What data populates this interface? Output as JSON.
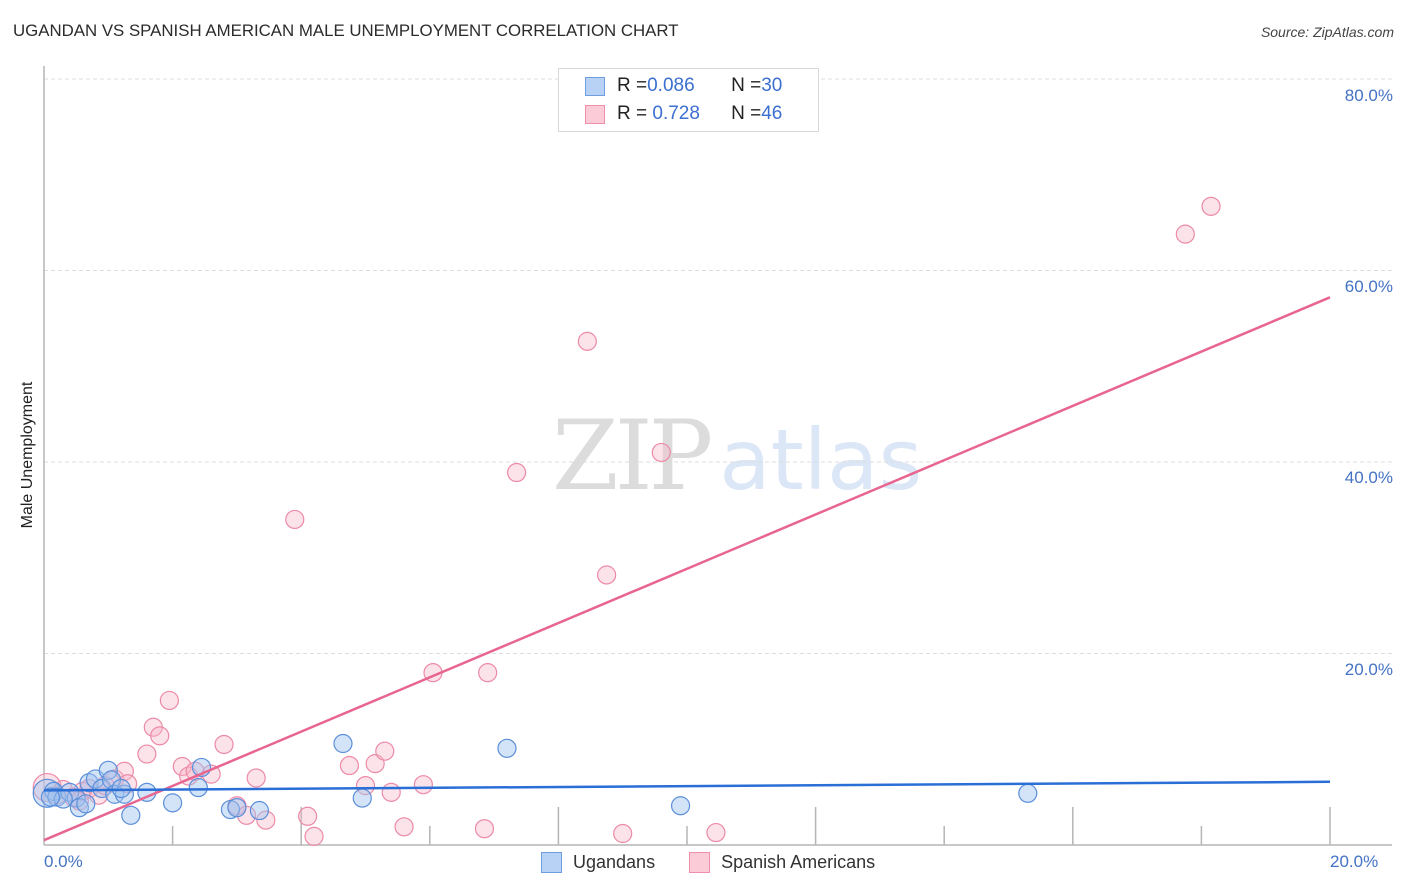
{
  "header": {
    "title": "UGANDAN VS SPANISH AMERICAN MALE UNEMPLOYMENT CORRELATION CHART",
    "source": "Source: ZipAtlas.com"
  },
  "watermark": {
    "zip": "ZIP",
    "atlas": "atlas"
  },
  "legend": {
    "rows": [
      {
        "r_label": "R = ",
        "r_value": "0.086",
        "n_label": "N = ",
        "n_value": "30",
        "color": "#a9c8f2",
        "border": "#6f9de0"
      },
      {
        "r_label": "R = ",
        "r_value": " 0.728",
        "n_label": "N = ",
        "n_value": "46",
        "color": "#f9c5d3",
        "border": "#ef8fab"
      }
    ]
  },
  "bottom_legend": [
    {
      "label": "Ugandans",
      "color": "#b7d2f5",
      "border": "#6f9de0"
    },
    {
      "label": "Spanish Americans",
      "color": "#fbcbd8",
      "border": "#ef8fab"
    }
  ],
  "colors": {
    "blue_point_fill": "rgba(160,196,240,0.45)",
    "blue_point_stroke": "#5b8fd9",
    "pink_point_fill": "rgba(248,183,201,0.40)",
    "pink_point_stroke": "#ec8aa7",
    "blue_trend": "#2a6fd6",
    "pink_trend": "#e8658f",
    "tick_label": "#4472c4",
    "grid": "#dddddd"
  },
  "chart_data": {
    "type": "scatter",
    "title": "UGANDAN VS SPANISH AMERICAN MALE UNEMPLOYMENT CORRELATION CHART",
    "xlabel": "",
    "ylabel": "Male Unemployment",
    "xlim": [
      0,
      20
    ],
    "ylim": [
      0,
      80
    ],
    "x_tick_labels": [
      "0.0%",
      "20.0%"
    ],
    "y_tick_labels": [
      "20.0%",
      "40.0%",
      "60.0%",
      "80.0%"
    ],
    "y_ticks": [
      20,
      40,
      60,
      80
    ],
    "grid": {
      "horizontal": true,
      "style": "dashed"
    },
    "legend_position": "top-center & bottom",
    "series": [
      {
        "name": "Ugandans",
        "R": 0.086,
        "N": 30,
        "trend": {
          "x": [
            0,
            20
          ],
          "y": [
            5.7,
            6.6
          ]
        },
        "points": [
          {
            "x": 0.05,
            "y": 5.4,
            "r": 14
          },
          {
            "x": 0.15,
            "y": 5.6
          },
          {
            "x": 0.2,
            "y": 5.0
          },
          {
            "x": 0.4,
            "y": 5.5
          },
          {
            "x": 0.5,
            "y": 4.9
          },
          {
            "x": 0.55,
            "y": 3.9
          },
          {
            "x": 0.7,
            "y": 6.5
          },
          {
            "x": 0.8,
            "y": 6.9
          },
          {
            "x": 0.9,
            "y": 5.9
          },
          {
            "x": 1.0,
            "y": 7.8
          },
          {
            "x": 1.05,
            "y": 6.8
          },
          {
            "x": 1.1,
            "y": 5.3
          },
          {
            "x": 1.25,
            "y": 5.3
          },
          {
            "x": 1.35,
            "y": 3.1
          },
          {
            "x": 1.6,
            "y": 5.5
          },
          {
            "x": 2.0,
            "y": 4.4
          },
          {
            "x": 2.4,
            "y": 6.0
          },
          {
            "x": 2.45,
            "y": 8.1
          },
          {
            "x": 2.9,
            "y": 3.7
          },
          {
            "x": 3.0,
            "y": 3.9
          },
          {
            "x": 3.35,
            "y": 3.6
          },
          {
            "x": 4.65,
            "y": 10.6
          },
          {
            "x": 4.95,
            "y": 4.9
          },
          {
            "x": 7.2,
            "y": 10.1
          },
          {
            "x": 9.9,
            "y": 4.1
          },
          {
            "x": 15.3,
            "y": 5.4
          },
          {
            "x": 0.3,
            "y": 4.8
          },
          {
            "x": 0.65,
            "y": 4.3
          },
          {
            "x": 1.2,
            "y": 5.9
          },
          {
            "x": 0.1,
            "y": 5.0
          }
        ]
      },
      {
        "name": "Spanish Americans",
        "R": 0.728,
        "N": 46,
        "trend": {
          "x": [
            0,
            20
          ],
          "y": [
            0.5,
            57.2
          ]
        },
        "points": [
          {
            "x": 0.05,
            "y": 6.0,
            "r": 14
          },
          {
            "x": 0.2,
            "y": 5.2
          },
          {
            "x": 0.3,
            "y": 5.8
          },
          {
            "x": 0.45,
            "y": 5.0
          },
          {
            "x": 0.6,
            "y": 5.6
          },
          {
            "x": 0.7,
            "y": 5.9
          },
          {
            "x": 0.85,
            "y": 5.2
          },
          {
            "x": 0.95,
            "y": 6.2
          },
          {
            "x": 1.1,
            "y": 6.9
          },
          {
            "x": 1.25,
            "y": 7.7
          },
          {
            "x": 1.3,
            "y": 6.4
          },
          {
            "x": 1.6,
            "y": 9.5
          },
          {
            "x": 1.7,
            "y": 12.3
          },
          {
            "x": 1.8,
            "y": 11.4
          },
          {
            "x": 1.95,
            "y": 15.1
          },
          {
            "x": 2.15,
            "y": 8.2
          },
          {
            "x": 2.25,
            "y": 7.2
          },
          {
            "x": 2.35,
            "y": 7.7
          },
          {
            "x": 2.6,
            "y": 7.4
          },
          {
            "x": 2.8,
            "y": 10.5
          },
          {
            "x": 3.0,
            "y": 4.1
          },
          {
            "x": 3.15,
            "y": 3.1
          },
          {
            "x": 3.3,
            "y": 7.0
          },
          {
            "x": 3.45,
            "y": 2.6
          },
          {
            "x": 3.9,
            "y": 34.0
          },
          {
            "x": 4.1,
            "y": 3.0
          },
          {
            "x": 4.2,
            "y": 0.9
          },
          {
            "x": 4.75,
            "y": 8.3
          },
          {
            "x": 5.0,
            "y": 6.2
          },
          {
            "x": 5.15,
            "y": 8.5
          },
          {
            "x": 5.3,
            "y": 9.8
          },
          {
            "x": 5.4,
            "y": 5.5
          },
          {
            "x": 5.6,
            "y": 1.9
          },
          {
            "x": 5.9,
            "y": 6.3
          },
          {
            "x": 6.05,
            "y": 18.0
          },
          {
            "x": 6.85,
            "y": 1.7
          },
          {
            "x": 6.9,
            "y": 18.0
          },
          {
            "x": 7.35,
            "y": 38.9
          },
          {
            "x": 8.45,
            "y": 52.6
          },
          {
            "x": 8.75,
            "y": 28.2
          },
          {
            "x": 9.0,
            "y": 1.2
          },
          {
            "x": 9.6,
            "y": 41.0
          },
          {
            "x": 10.45,
            "y": 1.3
          },
          {
            "x": 17.75,
            "y": 63.8
          },
          {
            "x": 18.15,
            "y": 66.7
          },
          {
            "x": 0.55,
            "y": 4.6
          }
        ]
      }
    ]
  }
}
